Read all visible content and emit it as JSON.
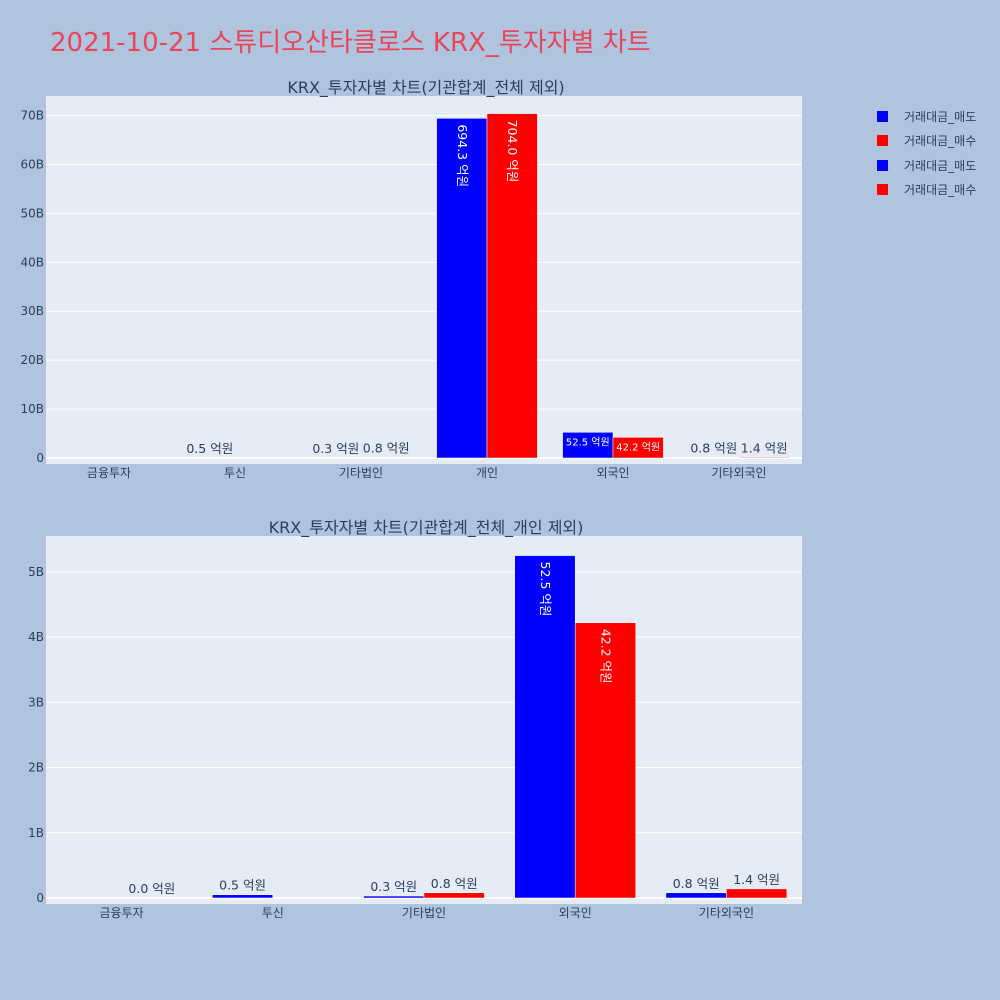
{
  "title": "2021-10-21 스튜디오산타클로스 KRX_투자자별 차트",
  "colors": {
    "sell": "#0000ff",
    "buy": "#ff0000",
    "title": "#e8455b",
    "plot_bg": "#e5ecf6",
    "page_bg": "#b0c4de"
  },
  "legend": [
    {
      "label": "거래대금_매도",
      "color": "#0000ff"
    },
    {
      "label": "거래대금_매수",
      "color": "#ff0000"
    },
    {
      "label": "거래대금_매도",
      "color": "#0000ff"
    },
    {
      "label": "거래대금_매수",
      "color": "#ff0000"
    }
  ],
  "chart_data": [
    {
      "type": "bar",
      "title": "KRX_투자자별 차트(기관합계_전체 제외)",
      "categories": [
        "금융투자",
        "투신",
        "기타법인",
        "개인",
        "외국인",
        "기타외국인"
      ],
      "series": [
        {
          "name": "거래대금_매도",
          "color": "#0000ff",
          "values": [
            0,
            50000000,
            30000000,
            69430000000,
            5250000000,
            80000000
          ],
          "labels": [
            "",
            "0.5 억원",
            "0.3 억원",
            "694.3 억원",
            "52.5 억원",
            "0.8 억원"
          ]
        },
        {
          "name": "거래대금_매수",
          "color": "#ff0000",
          "values": [
            0,
            0,
            80000000,
            70400000000,
            4220000000,
            140000000
          ],
          "labels": [
            "",
            "",
            "0.8 억원",
            "704.0 억원",
            "42.2 억원",
            "1.4 억원"
          ]
        }
      ],
      "yticks": [
        0,
        10000000000,
        20000000000,
        30000000000,
        40000000000,
        50000000000,
        60000000000,
        70000000000
      ],
      "ytick_labels": [
        "0",
        "10B",
        "20B",
        "30B",
        "40B",
        "50B",
        "60B",
        "70B"
      ],
      "ylim": [
        0,
        74000000000
      ],
      "grid": true
    },
    {
      "type": "bar",
      "title": "KRX_투자자별 차트(기관합계_전체_개인 제외)",
      "categories": [
        "금융투자",
        "투신",
        "기타법인",
        "외국인",
        "기타외국인"
      ],
      "series": [
        {
          "name": "거래대금_매도",
          "color": "#0000ff",
          "values": [
            0,
            50000000,
            30000000,
            5250000000,
            80000000
          ],
          "labels": [
            "",
            "0.5 억원",
            "0.3 억원",
            "52.5 억원",
            "0.8 억원"
          ]
        },
        {
          "name": "거래대금_매수",
          "color": "#ff0000",
          "values": [
            0,
            0,
            80000000,
            4220000000,
            140000000
          ],
          "labels": [
            "0.0 억원",
            "",
            "0.8 억원",
            "42.2 억원",
            "1.4 억원"
          ]
        }
      ],
      "yticks": [
        0,
        1000000000,
        2000000000,
        3000000000,
        4000000000,
        5000000000
      ],
      "ytick_labels": [
        "0",
        "1B",
        "2B",
        "3B",
        "4B",
        "5B"
      ],
      "ylim": [
        0,
        5550000000
      ],
      "grid": true
    }
  ]
}
